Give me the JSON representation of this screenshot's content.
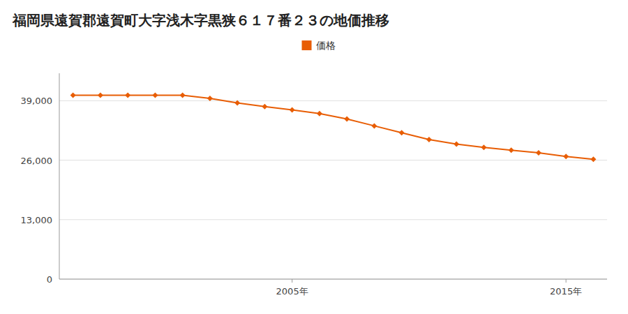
{
  "chart_data": {
    "type": "line",
    "title": "福岡県遠賀郡遠賀町大字浅木字黒狭６１７番２３の地価推移",
    "x": [
      1997,
      1998,
      1999,
      2000,
      2001,
      2002,
      2003,
      2004,
      2005,
      2006,
      2007,
      2008,
      2009,
      2010,
      2011,
      2012,
      2013,
      2014,
      2015,
      2016
    ],
    "series": [
      {
        "name": "価格",
        "color": "#e85d04",
        "marker": "diamond",
        "values": [
          40200,
          40200,
          40200,
          40200,
          40200,
          39500,
          38500,
          37700,
          37000,
          36200,
          35000,
          33500,
          32000,
          30500,
          29500,
          28800,
          28200,
          27600,
          26800,
          26200
        ]
      }
    ],
    "xlim": [
      1996.5,
      2016.5
    ],
    "xticks": [
      {
        "value": 2005,
        "label": "2005年"
      },
      {
        "value": 2015,
        "label": "2015年"
      }
    ],
    "ylim": [
      0,
      45000
    ],
    "yticks": [
      0,
      {
        "value": 13000,
        "label": "13,000"
      },
      {
        "value": 26000,
        "label": "26,000"
      },
      {
        "value": 39000,
        "label": "39,000"
      }
    ],
    "grid": true,
    "legend": "top"
  }
}
